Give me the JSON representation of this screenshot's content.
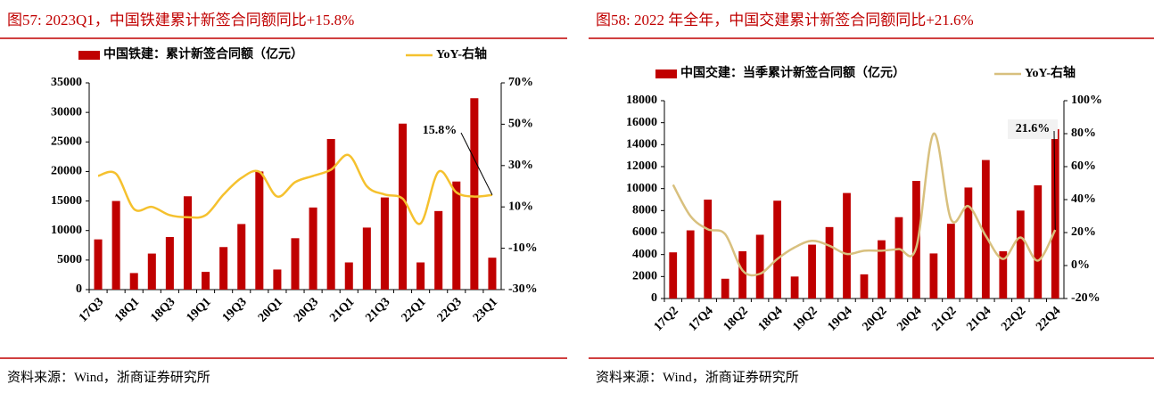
{
  "chart_data": [
    {
      "type": "bar",
      "title": "图57:  2023Q1，中国铁建累计新签合同额同比+15.8%",
      "source": "资料来源：Wind，浙商证券研究所",
      "categories": [
        "17Q3",
        null,
        "18Q1",
        null,
        "18Q3",
        null,
        "19Q1",
        null,
        "19Q3",
        null,
        "20Q1",
        null,
        "20Q3",
        null,
        "21Q1",
        null,
        "21Q3",
        null,
        "22Q1",
        null,
        "22Q3",
        null,
        "23Q1"
      ],
      "series": [
        {
          "name": "中国铁建：累计新签合同额（亿元）",
          "color": "#c00000",
          "values": [
            8500,
            15000,
            2800,
            6100,
            8900,
            15800,
            3000,
            7200,
            11100,
            20000,
            3400,
            8700,
            13900,
            25500,
            4600,
            10500,
            15600,
            28100,
            4600,
            13300,
            18300,
            32400,
            5400
          ]
        },
        {
          "name": "YoY-右轴",
          "color": "#f5c12e",
          "axis": "y2",
          "type": "line",
          "values": [
            25,
            26,
            9,
            10,
            6,
            5,
            6,
            16,
            24,
            27,
            15,
            22,
            25,
            28,
            35,
            20,
            16,
            14,
            2,
            27,
            17,
            15,
            15.8
          ]
        }
      ],
      "annotation": "15.8%",
      "ylim": [
        0,
        35000
      ],
      "yticks": [
        0,
        5000,
        10000,
        15000,
        20000,
        25000,
        30000,
        35000
      ],
      "y2lim": [
        -30,
        70
      ],
      "y2ticks": [
        {
          "value": -30,
          "label": "-30%"
        },
        {
          "value": -10,
          "label": "-10%"
        },
        {
          "value": 10,
          "label": "10%"
        },
        {
          "value": 30,
          "label": "30%"
        },
        {
          "value": 50,
          "label": "50%"
        },
        {
          "value": 70,
          "label": "70%"
        }
      ],
      "grid": false
    },
    {
      "type": "bar",
      "title": "图58:  2022 年全年，中国交建累计新签合同额同比+21.6%",
      "source": "资料来源：Wind，浙商证券研究所",
      "categories": [
        "17Q2",
        null,
        "17Q4",
        null,
        "18Q2",
        null,
        "18Q4",
        null,
        "19Q2",
        null,
        "19Q4",
        null,
        "20Q2",
        null,
        "20Q4",
        null,
        "21Q2",
        null,
        "21Q4",
        null,
        "22Q2",
        null,
        "22Q4"
      ],
      "series": [
        {
          "name": "中国交建：当季累计新签合同额（亿元）",
          "color": "#c00000",
          "values": [
            4200,
            6200,
            9000,
            1800,
            4300,
            5800,
            8900,
            2000,
            4900,
            6500,
            9600,
            2200,
            5300,
            7400,
            10700,
            4100,
            6800,
            10100,
            12600,
            4300,
            8000,
            10300,
            15400
          ]
        },
        {
          "name": "YoY-右轴",
          "color": "#d8c07e",
          "axis": "y2",
          "type": "line",
          "values": [
            49,
            30,
            22,
            19,
            -3,
            -5,
            4,
            11,
            15,
            12,
            7,
            9,
            9,
            10,
            11,
            80,
            28,
            36,
            18,
            4,
            17,
            3,
            21.6
          ]
        }
      ],
      "annotation": "21.6%",
      "ylim": [
        0,
        18000
      ],
      "yticks": [
        0,
        2000,
        4000,
        6000,
        8000,
        10000,
        12000,
        14000,
        16000,
        18000
      ],
      "y2lim": [
        -20,
        100
      ],
      "y2ticks": [
        {
          "value": -20,
          "label": "-20%"
        },
        {
          "value": 0,
          "label": "0%"
        },
        {
          "value": 20,
          "label": "20%"
        },
        {
          "value": 40,
          "label": "40%"
        },
        {
          "value": 60,
          "label": "60%"
        },
        {
          "value": 80,
          "label": "80%"
        },
        {
          "value": 100,
          "label": "100%"
        }
      ],
      "grid": false
    }
  ]
}
